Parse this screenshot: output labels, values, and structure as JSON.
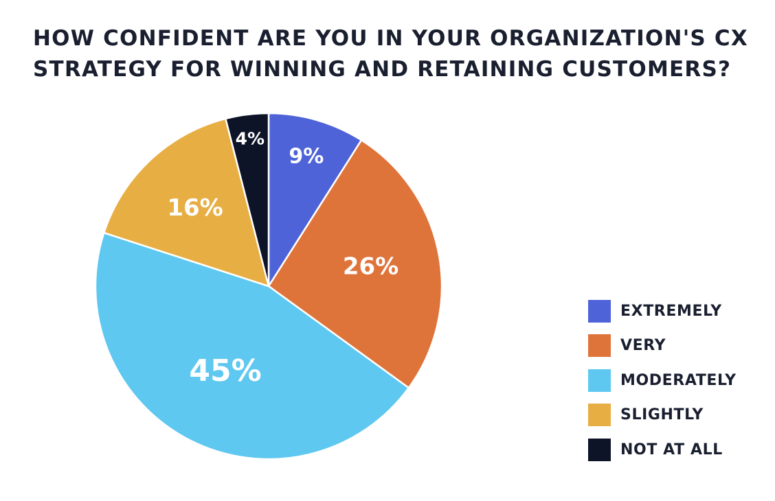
{
  "title_lines": [
    "HOW CONFIDENT ARE YOU IN YOUR ORGANIZATION'S CX",
    "STRATEGY FOR WINNING AND RETAINING CUSTOMERS?"
  ],
  "chart_data": {
    "type": "pie",
    "title": "HOW CONFIDENT ARE YOU IN YOUR ORGANIZATION'S CX STRATEGY FOR WINNING AND RETAINING CUSTOMERS?",
    "unit": "%",
    "start": "12 o'clock",
    "direction": "clockwise",
    "legend_position": "right",
    "slices": [
      {
        "label": "EXTREMELY",
        "value": 9,
        "value_label": "9%",
        "color": "#4f63d8"
      },
      {
        "label": "VERY",
        "value": 26,
        "value_label": "26%",
        "color": "#df743b"
      },
      {
        "label": "MODERATELY",
        "value": 45,
        "value_label": "45%",
        "color": "#5ec8f0"
      },
      {
        "label": "SLIGHTLY",
        "value": 16,
        "value_label": "16%",
        "color": "#e7ae44"
      },
      {
        "label": "NOT AT ALL",
        "value": 4,
        "value_label": "4%",
        "color": "#0e1428"
      }
    ]
  }
}
